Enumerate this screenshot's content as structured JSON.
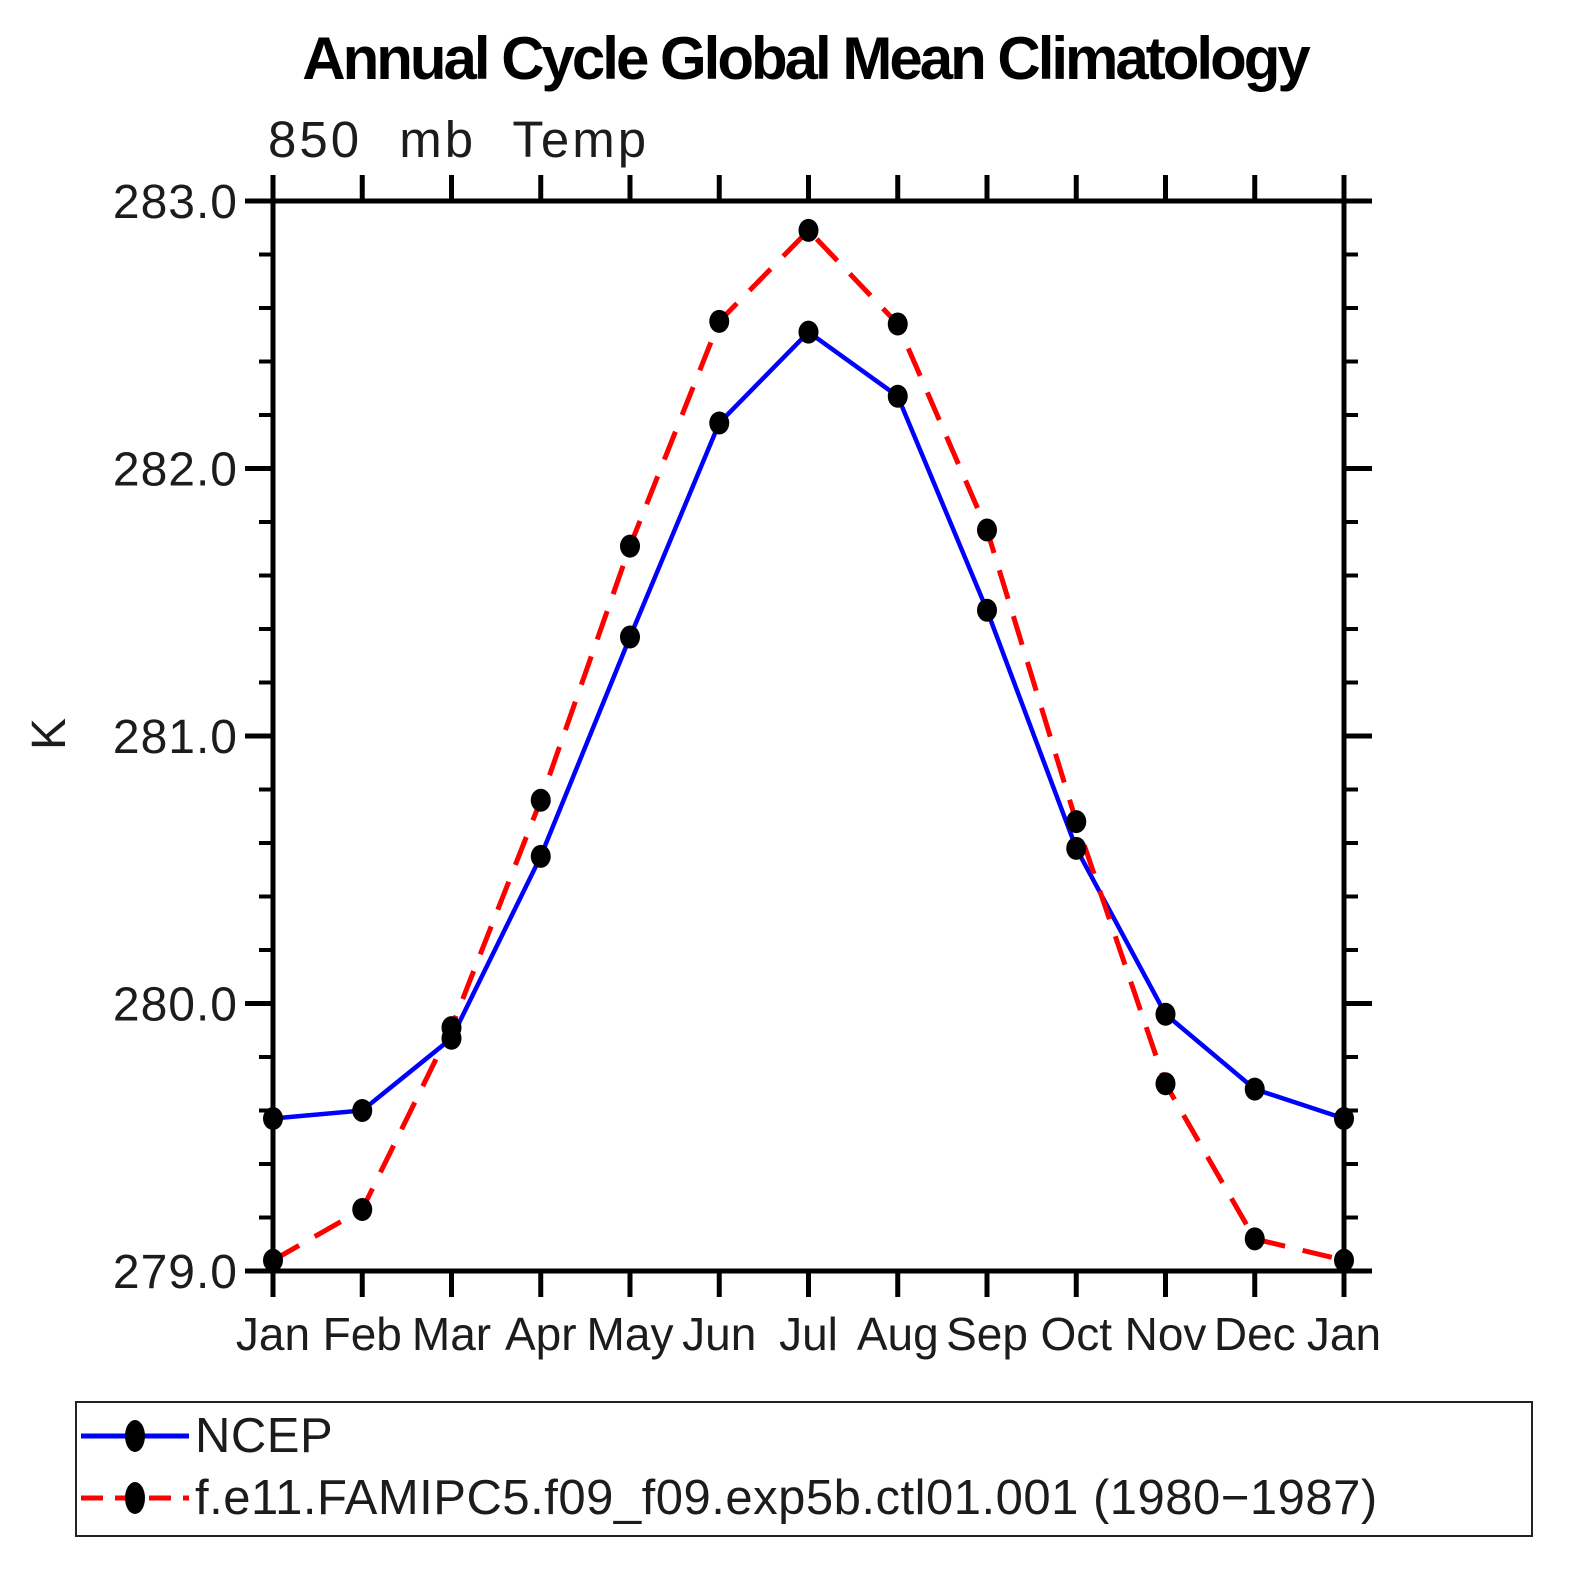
{
  "title": "Annual Cycle Global Mean Climatology",
  "subtitle": "850 mb Temp",
  "y_axis_title": "K",
  "chart_data": {
    "type": "line",
    "title": "Annual Cycle Global Mean Climatology",
    "subtitle": "850 mb Temp",
    "xlabel": "",
    "ylabel": "K",
    "categories": [
      "Jan",
      "Feb",
      "Mar",
      "Apr",
      "May",
      "Jun",
      "Jul",
      "Aug",
      "Sep",
      "Oct",
      "Nov",
      "Dec",
      "Jan"
    ],
    "series": [
      {
        "name": "NCEP",
        "color": "#0000ff",
        "style": "solid",
        "marker": "filled-circle",
        "marker_color": "#000000",
        "values": [
          279.57,
          279.6,
          279.87,
          280.55,
          281.37,
          282.17,
          282.51,
          282.27,
          281.47,
          280.58,
          279.96,
          279.68,
          279.57
        ]
      },
      {
        "name": "f.e11.FAMIPC5.f09_f09.exp5b.ctl01.001 (1980−1987)",
        "color": "#ff0000",
        "style": "dashed",
        "marker": "filled-circle",
        "marker_color": "#000000",
        "values": [
          279.04,
          279.23,
          279.91,
          280.76,
          281.71,
          282.55,
          282.89,
          282.54,
          281.77,
          280.68,
          279.7,
          279.12,
          279.04
        ]
      }
    ],
    "ylim": [
      279.0,
      283.0
    ],
    "ytick_values": [
      279,
      280,
      281,
      282,
      283
    ],
    "ytick_labels": [
      "279.0",
      "280.0",
      "281.0",
      "282.0",
      "283.0"
    ],
    "minor_tick_step": 0.2,
    "grid": false,
    "legend_position": "bottom-left-box"
  }
}
